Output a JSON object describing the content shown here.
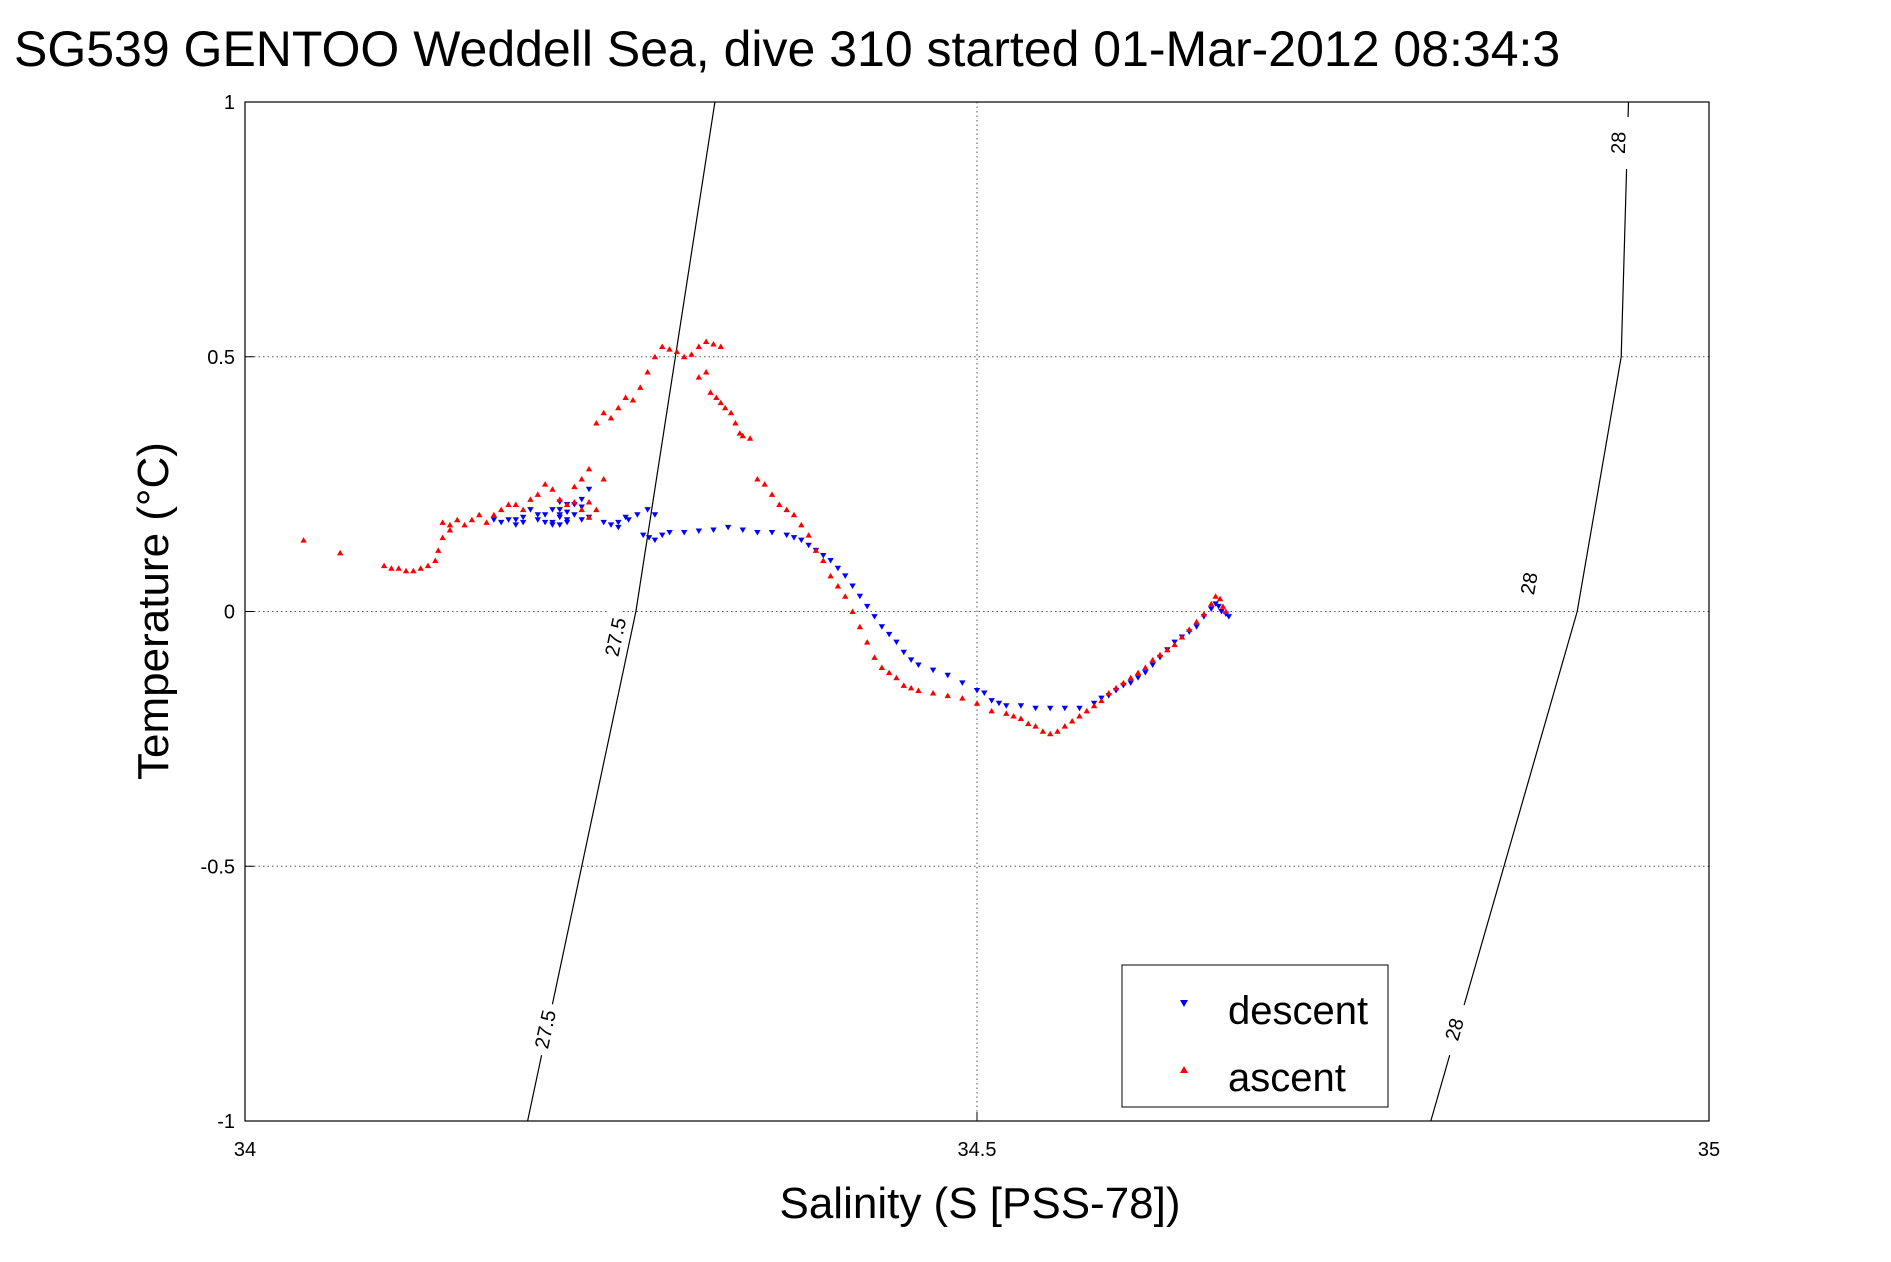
{
  "chart_data": {
    "type": "scatter",
    "title": "SG539 GENTOO Weddell Sea, dive 310 started 01-Mar-2012 08:34:3",
    "xlabel": "Salinity (S [PSS-78])",
    "ylabel": "Temperature (°C)",
    "xlim": [
      34,
      35
    ],
    "ylim": [
      -1,
      1
    ],
    "x_ticks": [
      34,
      34.5,
      35
    ],
    "x_tick_labels": [
      "34",
      "34.5",
      "35"
    ],
    "y_ticks": [
      -1,
      -0.5,
      0,
      0.5,
      1
    ],
    "y_tick_labels": [
      "-1",
      "-0.5",
      "0",
      "0.5",
      "1"
    ],
    "grid": true,
    "legend_position": "bottom-right",
    "contours": [
      {
        "level": "27.5",
        "points": [
          [
            34.193,
            -1
          ],
          [
            34.267,
            0
          ],
          [
            34.321,
            1
          ]
        ],
        "labels": [
          {
            "text": "27.5",
            "x": 34.205,
            "y": -0.82
          },
          {
            "text": "27.5",
            "x": 34.253,
            "y": -0.05
          }
        ]
      },
      {
        "level": "28",
        "points": [
          [
            34.81,
            -1
          ],
          [
            34.91,
            0
          ],
          [
            34.94,
            0.5
          ],
          [
            34.945,
            1
          ]
        ],
        "labels": [
          {
            "text": "28",
            "x": 34.826,
            "y": -0.82
          },
          {
            "text": "28",
            "x": 34.877,
            "y": 0.055
          },
          {
            "text": "28",
            "x": 34.938,
            "y": 0.92
          }
        ]
      }
    ],
    "series": [
      {
        "name": "descent",
        "color": "#0000ff",
        "marker": "triangle-down",
        "points": [
          [
            34.17,
            0.18
          ],
          [
            34.175,
            0.175
          ],
          [
            34.18,
            0.18
          ],
          [
            34.185,
            0.17
          ],
          [
            34.19,
            0.175
          ],
          [
            34.2,
            0.18
          ],
          [
            34.205,
            0.19
          ],
          [
            34.215,
            0.2
          ],
          [
            34.22,
            0.21
          ],
          [
            34.21,
            0.175
          ],
          [
            34.215,
            0.19
          ],
          [
            34.225,
            0.21
          ],
          [
            34.23,
            0.22
          ],
          [
            34.235,
            0.24
          ],
          [
            34.22,
            0.18
          ],
          [
            34.21,
            0.17
          ],
          [
            34.2,
            0.19
          ],
          [
            34.195,
            0.2
          ],
          [
            34.19,
            0.185
          ],
          [
            34.185,
            0.18
          ],
          [
            34.215,
            0.17
          ],
          [
            34.22,
            0.175
          ],
          [
            34.215,
            0.185
          ],
          [
            34.225,
            0.19
          ],
          [
            34.21,
            0.2
          ],
          [
            34.215,
            0.215
          ],
          [
            34.23,
            0.18
          ],
          [
            34.205,
            0.175
          ],
          [
            34.255,
            0.175
          ],
          [
            34.26,
            0.185
          ],
          [
            34.22,
            0.195
          ],
          [
            34.23,
            0.205
          ],
          [
            34.235,
            0.185
          ],
          [
            34.245,
            0.175
          ],
          [
            34.25,
            0.17
          ],
          [
            34.255,
            0.165
          ],
          [
            34.262,
            0.18
          ],
          [
            34.268,
            0.19
          ],
          [
            34.275,
            0.2
          ],
          [
            34.28,
            0.19
          ],
          [
            34.272,
            0.15
          ],
          [
            34.276,
            0.145
          ],
          [
            34.28,
            0.14
          ],
          [
            34.285,
            0.15
          ],
          [
            34.29,
            0.155
          ],
          [
            34.3,
            0.155
          ],
          [
            34.31,
            0.158
          ],
          [
            34.32,
            0.16
          ],
          [
            34.33,
            0.165
          ],
          [
            34.34,
            0.16
          ],
          [
            34.35,
            0.155
          ],
          [
            34.36,
            0.155
          ],
          [
            34.37,
            0.15
          ],
          [
            34.375,
            0.145
          ],
          [
            34.38,
            0.14
          ],
          [
            34.385,
            0.13
          ],
          [
            34.39,
            0.12
          ],
          [
            34.395,
            0.11
          ],
          [
            34.4,
            0.1
          ],
          [
            34.405,
            0.085
          ],
          [
            34.41,
            0.07
          ],
          [
            34.415,
            0.05
          ],
          [
            34.42,
            0.03
          ],
          [
            34.425,
            0.01
          ],
          [
            34.43,
            -0.01
          ],
          [
            34.435,
            -0.03
          ],
          [
            34.44,
            -0.045
          ],
          [
            34.445,
            -0.06
          ],
          [
            34.45,
            -0.08
          ],
          [
            34.455,
            -0.095
          ],
          [
            34.46,
            -0.105
          ],
          [
            34.47,
            -0.115
          ],
          [
            34.48,
            -0.125
          ],
          [
            34.49,
            -0.14
          ],
          [
            34.5,
            -0.155
          ],
          [
            34.505,
            -0.16
          ],
          [
            34.51,
            -0.175
          ],
          [
            34.515,
            -0.18
          ],
          [
            34.52,
            -0.185
          ],
          [
            34.53,
            -0.185
          ],
          [
            34.54,
            -0.19
          ],
          [
            34.55,
            -0.19
          ],
          [
            34.56,
            -0.19
          ],
          [
            34.57,
            -0.19
          ],
          [
            34.58,
            -0.18
          ],
          [
            34.585,
            -0.17
          ],
          [
            34.59,
            -0.165
          ],
          [
            34.595,
            -0.155
          ],
          [
            34.6,
            -0.145
          ],
          [
            34.605,
            -0.14
          ],
          [
            34.61,
            -0.13
          ],
          [
            34.615,
            -0.12
          ],
          [
            34.62,
            -0.105
          ],
          [
            34.625,
            -0.09
          ],
          [
            34.63,
            -0.075
          ],
          [
            34.635,
            -0.06
          ],
          [
            34.64,
            -0.05
          ],
          [
            34.645,
            -0.04
          ],
          [
            34.65,
            -0.03
          ],
          [
            34.655,
            -0.01
          ],
          [
            34.66,
            0.005
          ],
          [
            34.663,
            0.015
          ],
          [
            34.665,
            0.01
          ],
          [
            34.667,
            0.0
          ],
          [
            34.67,
            -0.005
          ],
          [
            34.672,
            -0.01
          ]
        ]
      },
      {
        "name": "ascent",
        "color": "#ff0000",
        "marker": "triangle-up",
        "points": [
          [
            34.04,
            0.14
          ],
          [
            34.065,
            0.115
          ],
          [
            34.095,
            0.09
          ],
          [
            34.1,
            0.085
          ],
          [
            34.105,
            0.085
          ],
          [
            34.11,
            0.08
          ],
          [
            34.115,
            0.08
          ],
          [
            34.12,
            0.085
          ],
          [
            34.125,
            0.09
          ],
          [
            34.13,
            0.1
          ],
          [
            34.132,
            0.12
          ],
          [
            34.135,
            0.145
          ],
          [
            34.14,
            0.16
          ],
          [
            34.135,
            0.175
          ],
          [
            34.14,
            0.17
          ],
          [
            34.145,
            0.18
          ],
          [
            34.15,
            0.17
          ],
          [
            34.155,
            0.18
          ],
          [
            34.16,
            0.19
          ],
          [
            34.165,
            0.175
          ],
          [
            34.17,
            0.19
          ],
          [
            34.175,
            0.2
          ],
          [
            34.18,
            0.21
          ],
          [
            34.185,
            0.21
          ],
          [
            34.19,
            0.2
          ],
          [
            34.195,
            0.22
          ],
          [
            34.2,
            0.23
          ],
          [
            34.205,
            0.25
          ],
          [
            34.21,
            0.24
          ],
          [
            34.215,
            0.22
          ],
          [
            34.22,
            0.21
          ],
          [
            34.225,
            0.215
          ],
          [
            34.23,
            0.2
          ],
          [
            34.235,
            0.185
          ],
          [
            34.24,
            0.2
          ],
          [
            34.235,
            0.215
          ],
          [
            34.225,
            0.245
          ],
          [
            34.23,
            0.26
          ],
          [
            34.245,
            0.26
          ],
          [
            34.235,
            0.28
          ],
          [
            34.24,
            0.37
          ],
          [
            34.245,
            0.39
          ],
          [
            34.25,
            0.38
          ],
          [
            34.255,
            0.4
          ],
          [
            34.26,
            0.42
          ],
          [
            34.265,
            0.415
          ],
          [
            34.27,
            0.44
          ],
          [
            34.275,
            0.47
          ],
          [
            34.28,
            0.5
          ],
          [
            34.285,
            0.52
          ],
          [
            34.29,
            0.515
          ],
          [
            34.295,
            0.51
          ],
          [
            34.3,
            0.5
          ],
          [
            34.305,
            0.505
          ],
          [
            34.31,
            0.52
          ],
          [
            34.315,
            0.53
          ],
          [
            34.32,
            0.525
          ],
          [
            34.325,
            0.52
          ],
          [
            34.315,
            0.47
          ],
          [
            34.31,
            0.46
          ],
          [
            34.318,
            0.43
          ],
          [
            34.322,
            0.42
          ],
          [
            34.325,
            0.41
          ],
          [
            34.328,
            0.4
          ],
          [
            34.332,
            0.39
          ],
          [
            34.335,
            0.37
          ],
          [
            34.338,
            0.35
          ],
          [
            34.34,
            0.345
          ],
          [
            34.345,
            0.34
          ],
          [
            34.35,
            0.26
          ],
          [
            34.355,
            0.25
          ],
          [
            34.36,
            0.23
          ],
          [
            34.365,
            0.21
          ],
          [
            34.37,
            0.2
          ],
          [
            34.375,
            0.19
          ],
          [
            34.38,
            0.17
          ],
          [
            34.385,
            0.15
          ],
          [
            34.39,
            0.12
          ],
          [
            34.395,
            0.1
          ],
          [
            34.4,
            0.07
          ],
          [
            34.405,
            0.05
          ],
          [
            34.41,
            0.03
          ],
          [
            34.415,
            0.0
          ],
          [
            34.42,
            -0.03
          ],
          [
            34.425,
            -0.06
          ],
          [
            34.43,
            -0.09
          ],
          [
            34.435,
            -0.11
          ],
          [
            34.44,
            -0.12
          ],
          [
            34.445,
            -0.13
          ],
          [
            34.45,
            -0.145
          ],
          [
            34.455,
            -0.15
          ],
          [
            34.46,
            -0.155
          ],
          [
            34.47,
            -0.16
          ],
          [
            34.48,
            -0.165
          ],
          [
            34.49,
            -0.17
          ],
          [
            34.5,
            -0.18
          ],
          [
            34.51,
            -0.195
          ],
          [
            34.52,
            -0.2
          ],
          [
            34.525,
            -0.205
          ],
          [
            34.53,
            -0.21
          ],
          [
            34.535,
            -0.22
          ],
          [
            34.54,
            -0.225
          ],
          [
            34.545,
            -0.235
          ],
          [
            34.55,
            -0.24
          ],
          [
            34.555,
            -0.235
          ],
          [
            34.56,
            -0.225
          ],
          [
            34.565,
            -0.215
          ],
          [
            34.57,
            -0.205
          ],
          [
            34.575,
            -0.195
          ],
          [
            34.58,
            -0.185
          ],
          [
            34.585,
            -0.175
          ],
          [
            34.59,
            -0.16
          ],
          [
            34.595,
            -0.15
          ],
          [
            34.6,
            -0.14
          ],
          [
            34.605,
            -0.13
          ],
          [
            34.61,
            -0.12
          ],
          [
            34.615,
            -0.11
          ],
          [
            34.62,
            -0.095
          ],
          [
            34.625,
            -0.085
          ],
          [
            34.63,
            -0.075
          ],
          [
            34.635,
            -0.065
          ],
          [
            34.64,
            -0.05
          ],
          [
            34.645,
            -0.035
          ],
          [
            34.65,
            -0.02
          ],
          [
            34.655,
            -0.005
          ],
          [
            34.66,
            0.015
          ],
          [
            34.663,
            0.03
          ],
          [
            34.666,
            0.025
          ],
          [
            34.668,
            0.01
          ],
          [
            34.67,
            0.0
          ]
        ]
      }
    ]
  }
}
